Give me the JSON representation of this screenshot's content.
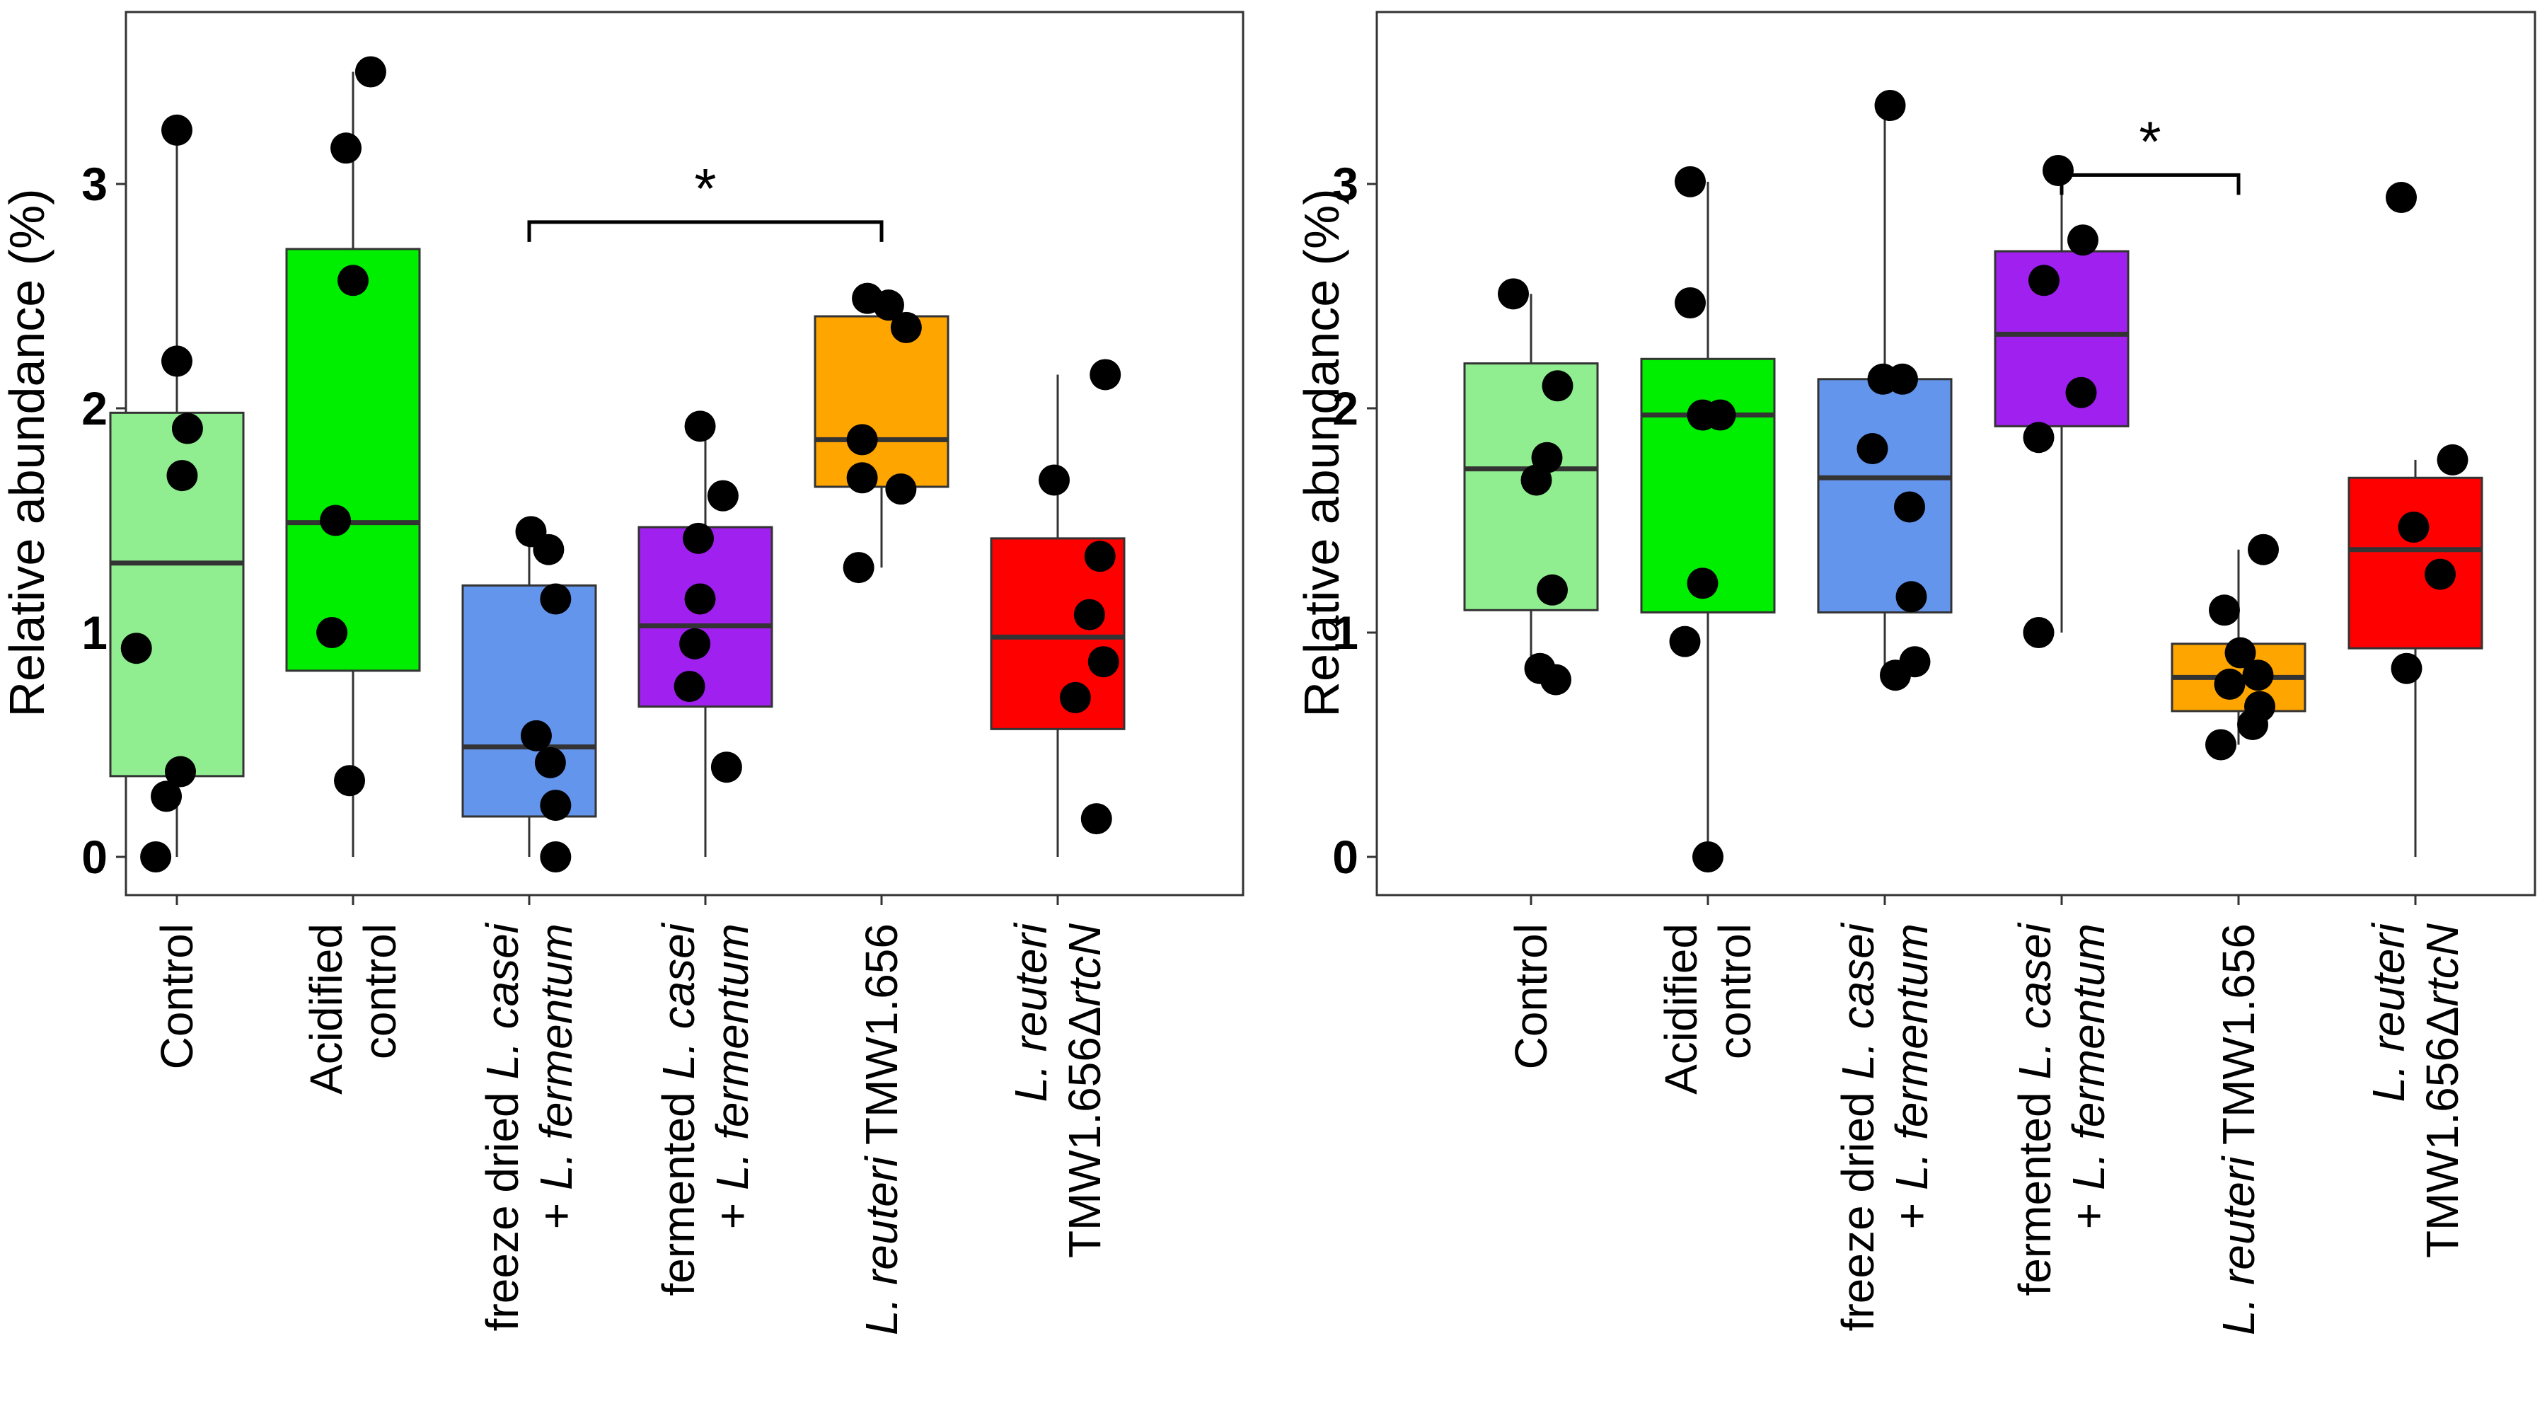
{
  "chart_data": [
    {
      "type": "box",
      "title": "",
      "ylabel": "Relative abundance (%)",
      "xlabel": "",
      "ylim": [
        -0.17,
        3.77
      ],
      "yticks": [
        0,
        1,
        2,
        3
      ],
      "legend": "none",
      "categories": [
        {
          "lines": [
            [
              "Control"
            ]
          ],
          "color": "#90EE90"
        },
        {
          "lines": [
            [
              "Acidified"
            ],
            [
              "control"
            ]
          ],
          "color": "#00EE00"
        },
        {
          "lines": [
            [
              "freeze dried ",
              {
                "i": "L. casei"
              }
            ],
            [
              "+ ",
              {
                "i": "L. fermentum"
              }
            ]
          ],
          "color": "#6495ED"
        },
        {
          "lines": [
            [
              "fermented ",
              {
                "i": "L. casei"
              }
            ],
            [
              "+ ",
              {
                "i": "L. fermentum"
              }
            ]
          ],
          "color": "#A020F0"
        },
        {
          "lines": [
            [
              {
                "i": "L. reuteri"
              },
              " TMW1.656"
            ]
          ],
          "color": "#FFA500"
        },
        {
          "lines": [
            [
              {
                "i": "L. reuteri"
              }
            ],
            [
              "TMW1.656Δ",
              {
                "i": "rtcN"
              }
            ]
          ],
          "color": "#FF0000"
        }
      ],
      "boxes": [
        {
          "q1": 0.36,
          "median": 1.31,
          "q3": 1.98,
          "whisker_low": 0.0,
          "whisker_high": 3.25
        },
        {
          "q1": 0.83,
          "median": 1.49,
          "q3": 2.71,
          "whisker_low": 0.0,
          "whisker_high": 3.5
        },
        {
          "q1": 0.18,
          "median": 0.49,
          "q3": 1.21,
          "whisker_low": 0.0,
          "whisker_high": 1.45
        },
        {
          "q1": 0.67,
          "median": 1.03,
          "q3": 1.47,
          "whisker_low": 0.0,
          "whisker_high": 1.92
        },
        {
          "q1": 1.65,
          "median": 1.86,
          "q3": 2.41,
          "whisker_low": 1.29,
          "whisker_high": 2.49
        },
        {
          "q1": 0.57,
          "median": 0.98,
          "q3": 1.42,
          "whisker_low": 0.0,
          "whisker_high": 2.15
        }
      ],
      "points": [
        [
          3.24,
          2.21,
          1.91,
          1.7,
          0.93,
          0.38,
          0.27,
          0.0
        ],
        [
          3.5,
          3.16,
          2.57,
          1.5,
          1.0,
          0.34
        ],
        [
          1.45,
          1.37,
          1.15,
          0.54,
          0.42,
          0.23,
          0.0
        ],
        [
          1.92,
          1.61,
          1.42,
          1.15,
          0.95,
          0.76,
          0.4
        ],
        [
          2.49,
          2.46,
          2.36,
          1.86,
          1.69,
          1.64,
          1.29
        ],
        [
          2.15,
          1.68,
          1.34,
          1.08,
          0.87,
          0.71,
          0.17
        ]
      ],
      "jitter": [
        [
          0.0,
          0.0,
          0.06,
          0.03,
          -0.23,
          0.02,
          -0.06,
          -0.12
        ],
        [
          0.1,
          -0.04,
          0.0,
          -0.1,
          -0.12,
          -0.02
        ],
        [
          0.01,
          0.11,
          0.15,
          0.04,
          0.12,
          0.15,
          0.15
        ],
        [
          -0.03,
          0.1,
          -0.04,
          -0.03,
          -0.06,
          -0.09,
          0.12
        ],
        [
          -0.08,
          0.04,
          0.14,
          -0.11,
          -0.11,
          0.11,
          -0.13
        ],
        [
          0.27,
          -0.02,
          0.24,
          0.18,
          0.26,
          0.1,
          0.22
        ]
      ],
      "significance": {
        "from": 2,
        "to": 4,
        "y": 2.83,
        "label": "*"
      }
    },
    {
      "type": "box",
      "title": "",
      "ylabel": "Relative abundance (%)",
      "xlabel": "",
      "ylim": [
        -0.17,
        3.77
      ],
      "yticks": [
        0,
        1,
        2,
        3
      ],
      "legend": "none",
      "categories": [
        {
          "lines": [
            [
              "Control"
            ]
          ],
          "color": "#90EE90"
        },
        {
          "lines": [
            [
              "Acidified"
            ],
            [
              "control"
            ]
          ],
          "color": "#00EE00"
        },
        {
          "lines": [
            [
              "freeze dried ",
              {
                "i": "L. casei"
              }
            ],
            [
              "+ ",
              {
                "i": "L. fermentum"
              }
            ]
          ],
          "color": "#6495ED"
        },
        {
          "lines": [
            [
              "fermented ",
              {
                "i": "L. casei"
              }
            ],
            [
              "+ ",
              {
                "i": "L. fermentum"
              }
            ]
          ],
          "color": "#A020F0"
        },
        {
          "lines": [
            [
              {
                "i": "L. reuteri"
              },
              " TMW1.656"
            ]
          ],
          "color": "#FFA500"
        },
        {
          "lines": [
            [
              {
                "i": "L. reuteri"
              }
            ],
            [
              "TMW1.656Δ",
              {
                "i": "rtcN"
              }
            ]
          ],
          "color": "#FF0000"
        }
      ],
      "boxes": [
        {
          "q1": 1.1,
          "median": 1.73,
          "q3": 2.2,
          "whisker_low": 0.79,
          "whisker_high": 2.51
        },
        {
          "q1": 1.09,
          "median": 1.97,
          "q3": 2.22,
          "whisker_low": 0.0,
          "whisker_high": 3.01
        },
        {
          "q1": 1.09,
          "median": 1.69,
          "q3": 2.13,
          "whisker_low": 0.81,
          "whisker_high": 3.35
        },
        {
          "q1": 1.92,
          "median": 2.33,
          "q3": 2.7,
          "whisker_low": 1.0,
          "whisker_high": 3.06
        },
        {
          "q1": 0.65,
          "median": 0.8,
          "q3": 0.95,
          "whisker_low": 0.5,
          "whisker_high": 1.37
        },
        {
          "q1": 0.93,
          "median": 1.37,
          "q3": 1.69,
          "whisker_low": 0.0,
          "whisker_high": 1.77
        }
      ],
      "points": [
        [
          2.51,
          2.1,
          1.78,
          1.68,
          1.19,
          0.84,
          0.79
        ],
        [
          3.01,
          2.47,
          1.97,
          1.97,
          1.22,
          0.96,
          0.0
        ],
        [
          3.35,
          2.13,
          2.13,
          1.82,
          1.56,
          1.16,
          0.87,
          0.81
        ],
        [
          3.06,
          2.75,
          2.57,
          2.07,
          1.87,
          1.0
        ],
        [
          1.37,
          1.1,
          0.91,
          0.81,
          0.77,
          0.67,
          0.59,
          0.5
        ],
        [
          2.94,
          1.77,
          1.47,
          1.26,
          0.84
        ]
      ],
      "jitter": [
        [
          -0.1,
          0.15,
          0.09,
          0.03,
          0.12,
          0.05,
          0.14
        ],
        [
          -0.1,
          -0.1,
          -0.03,
          0.07,
          -0.03,
          -0.13,
          0.0
        ],
        [
          0.03,
          -0.01,
          0.1,
          -0.07,
          0.14,
          0.15,
          0.17,
          0.06
        ],
        [
          -0.02,
          0.12,
          -0.1,
          0.11,
          -0.13,
          -0.13
        ],
        [
          0.14,
          -0.08,
          0.01,
          0.11,
          -0.05,
          0.12,
          0.08,
          -0.1
        ],
        [
          -0.08,
          0.21,
          -0.01,
          0.14,
          -0.05
        ]
      ],
      "significance": {
        "from": 3,
        "to": 4,
        "y": 3.04,
        "label": "*"
      }
    }
  ]
}
